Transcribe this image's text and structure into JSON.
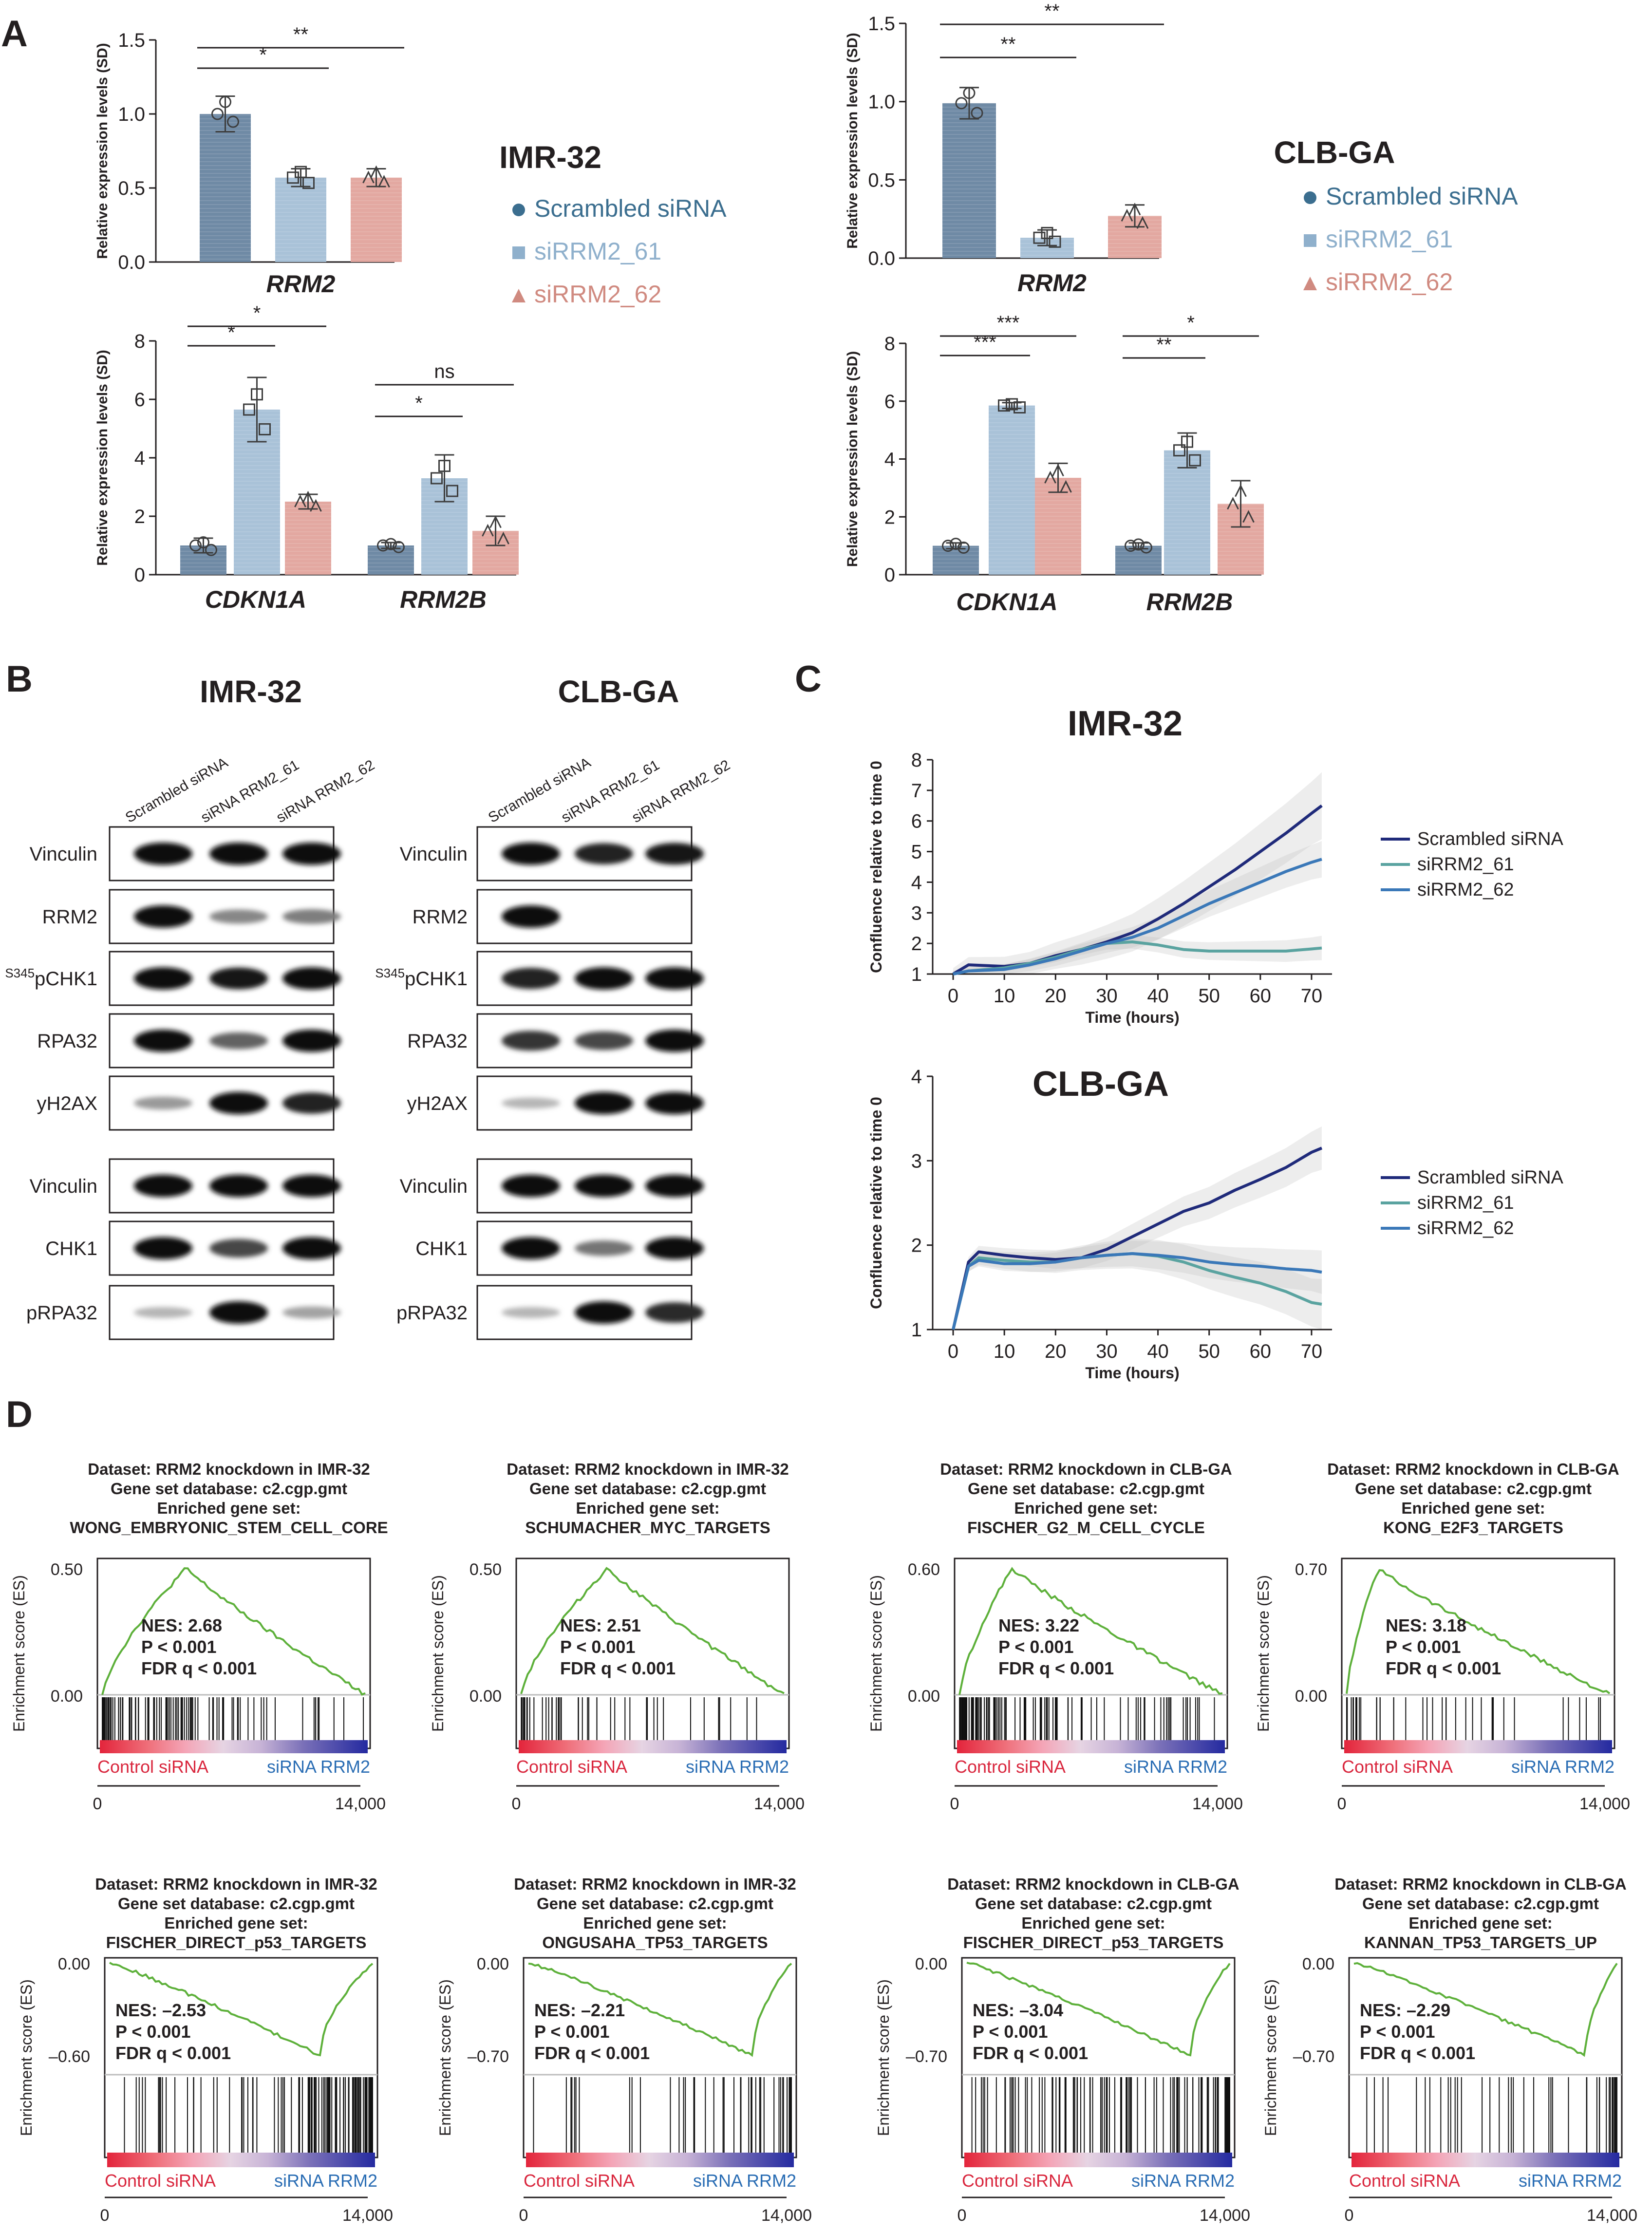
{
  "panel_letters": [
    "A",
    "B",
    "C",
    "D"
  ],
  "colors": {
    "scrambled": "#6f8aa5",
    "si61": "#a9c2d8",
    "si62": "#e3a8a1",
    "legend_scrambled": "#3b6e8f",
    "legend_si61": "#8fb0cc",
    "legend_si62": "#d08a80",
    "curve_scrambled": "#1f2a7a",
    "curve_si61": "#5aa3a0",
    "curve_si62": "#3a78b8",
    "gsea_line": "#5db03a"
  },
  "panel_a": {
    "ylabel": "Relative expression levels (SD)",
    "legend": [
      "Scrambled siRNA",
      "siRRM2_61",
      "siRRM2_62"
    ],
    "cell_lines": [
      {
        "name": "IMR-32",
        "rrm2": {
          "gene": "RRM2",
          "values": [
            1.0,
            0.57,
            0.57
          ],
          "errors": [
            0.12,
            0.06,
            0.06
          ],
          "ylim": [
            0,
            1.5
          ],
          "ticks": [
            "0.0",
            "0.5",
            "1.0",
            "1.5"
          ],
          "sig": [
            {
              "label": "**",
              "from": 0,
              "to": 2
            },
            {
              "label": "*",
              "from": 0,
              "to": 1
            }
          ]
        },
        "other": {
          "genes": [
            "CDKN1A",
            "RRM2B"
          ],
          "values": [
            [
              1.0,
              5.65,
              2.5
            ],
            [
              1.0,
              3.3,
              1.5
            ]
          ],
          "errors": [
            [
              0.25,
              1.1,
              0.25
            ],
            [
              0.1,
              0.8,
              0.5
            ]
          ],
          "ylim": [
            0,
            8
          ],
          "ticks": [
            "0",
            "2",
            "4",
            "6",
            "8"
          ],
          "sig": [
            {
              "label": "*",
              "group": 0,
              "from": 0,
              "to": 2
            },
            {
              "label": "*",
              "group": 0,
              "from": 0,
              "to": 1
            },
            {
              "label": "ns",
              "group": 1,
              "from": 0,
              "to": 2
            },
            {
              "label": "*",
              "group": 1,
              "from": 0,
              "to": 1
            }
          ]
        }
      },
      {
        "name": "CLB-GA",
        "rrm2": {
          "gene": "RRM2",
          "values": [
            0.99,
            0.13,
            0.27
          ],
          "errors": [
            0.1,
            0.05,
            0.07
          ],
          "ylim": [
            0,
            1.5
          ],
          "ticks": [
            "0.0",
            "0.5",
            "1.0",
            "1.5"
          ],
          "sig": [
            {
              "label": "**",
              "from": 0,
              "to": 2
            },
            {
              "label": "**",
              "from": 0,
              "to": 1
            }
          ]
        },
        "other": {
          "genes": [
            "CDKN1A",
            "RRM2B"
          ],
          "values": [
            [
              1.0,
              5.85,
              3.35
            ],
            [
              1.0,
              4.3,
              2.45
            ]
          ],
          "errors": [
            [
              0.1,
              0.1,
              0.5
            ],
            [
              0.1,
              0.6,
              0.8
            ]
          ],
          "ylim": [
            0,
            8
          ],
          "ticks": [
            "0",
            "2",
            "4",
            "6",
            "8"
          ],
          "sig": [
            {
              "label": "***",
              "group": 0,
              "from": 0,
              "to": 2
            },
            {
              "label": "***",
              "group": 0,
              "from": 0,
              "to": 1
            },
            {
              "label": "*",
              "group": 1,
              "from": 0,
              "to": 2
            },
            {
              "label": "**",
              "group": 1,
              "from": 0,
              "to": 1
            }
          ]
        }
      }
    ]
  },
  "panel_b": {
    "lane_labels": [
      "Scrambled siRNA",
      "siRNA RRM2_61",
      "siRNA RRM2_62"
    ],
    "blots": [
      {
        "title": "IMR-32",
        "rows": [
          {
            "label": "Vinculin",
            "intensity": [
              1.0,
              1.0,
              1.0
            ]
          },
          {
            "label": "RRM2",
            "intensity": [
              1.0,
              0.35,
              0.4
            ]
          },
          {
            "label": "pCHK1",
            "superscript": "S345",
            "intensity": [
              1.0,
              0.95,
              1.0
            ]
          },
          {
            "label": "RPA32",
            "intensity": [
              1.0,
              0.55,
              1.0
            ]
          },
          {
            "label": "yH2AX",
            "intensity": [
              0.25,
              1.0,
              0.9
            ]
          },
          {
            "label": "Vinculin",
            "intensity": [
              1.0,
              1.0,
              1.0
            ]
          },
          {
            "label": "CHK1",
            "intensity": [
              1.0,
              0.7,
              1.0
            ]
          },
          {
            "label": "pRPA32",
            "intensity": [
              0.1,
              1.0,
              0.2
            ]
          }
        ]
      },
      {
        "title": "CLB-GA",
        "rows": [
          {
            "label": "Vinculin",
            "intensity": [
              1.0,
              0.9,
              0.95
            ]
          },
          {
            "label": "RRM2",
            "intensity": [
              1.0,
              0.0,
              0.0
            ]
          },
          {
            "label": "pCHK1",
            "superscript": "S345",
            "intensity": [
              0.9,
              1.0,
              1.0
            ]
          },
          {
            "label": "RPA32",
            "intensity": [
              0.8,
              0.7,
              1.0
            ]
          },
          {
            "label": "yH2AX",
            "intensity": [
              0.1,
              1.0,
              1.0
            ]
          },
          {
            "label": "Vinculin",
            "intensity": [
              1.0,
              1.0,
              1.0
            ]
          },
          {
            "label": "CHK1",
            "intensity": [
              1.0,
              0.45,
              1.0
            ]
          },
          {
            "label": "pRPA32",
            "intensity": [
              0.1,
              1.0,
              0.85
            ]
          }
        ]
      }
    ]
  },
  "chart_data": [
    {
      "type": "line",
      "title": "IMR-32",
      "xlabel": "Time (hours)",
      "ylabel": "Confluence relative to time 0",
      "xlim": [
        -4,
        74
      ],
      "ylim": [
        1,
        8
      ],
      "xticks": [
        0,
        10,
        20,
        30,
        40,
        50,
        60,
        70
      ],
      "yticks": [
        1,
        2,
        3,
        4,
        5,
        6,
        7,
        8
      ],
      "x": [
        0,
        3,
        10,
        15,
        20,
        25,
        30,
        35,
        40,
        45,
        50,
        55,
        60,
        65,
        70,
        72
      ],
      "series": [
        {
          "name": "Scrambled siRNA",
          "values": [
            1.0,
            1.3,
            1.25,
            1.35,
            1.6,
            1.8,
            2.05,
            2.35,
            2.8,
            3.3,
            3.85,
            4.4,
            5.0,
            5.6,
            6.25,
            6.5
          ]
        },
        {
          "name": "siRRM2_61",
          "values": [
            1.0,
            1.1,
            1.2,
            1.35,
            1.55,
            1.8,
            2.0,
            2.05,
            1.95,
            1.8,
            1.75,
            1.75,
            1.75,
            1.75,
            1.82,
            1.85
          ]
        },
        {
          "name": "siRRM2_62",
          "values": [
            1.0,
            1.1,
            1.15,
            1.3,
            1.5,
            1.75,
            2.0,
            2.2,
            2.5,
            2.9,
            3.3,
            3.65,
            4.0,
            4.35,
            4.65,
            4.75
          ]
        }
      ],
      "legend": "right"
    },
    {
      "type": "line",
      "title": "CLB-GA",
      "xlabel": "Time (hours)",
      "ylabel": "Confluence relative to time 0",
      "xlim": [
        -4,
        74
      ],
      "ylim": [
        1,
        4
      ],
      "xticks": [
        0,
        10,
        20,
        30,
        40,
        50,
        60,
        70
      ],
      "yticks": [
        1,
        2,
        3,
        4
      ],
      "x": [
        0,
        3,
        5,
        10,
        15,
        20,
        25,
        30,
        35,
        40,
        45,
        50,
        55,
        60,
        65,
        70,
        72
      ],
      "series": [
        {
          "name": "Scrambled siRNA",
          "values": [
            1.0,
            1.8,
            1.92,
            1.88,
            1.85,
            1.83,
            1.85,
            1.95,
            2.1,
            2.25,
            2.4,
            2.5,
            2.65,
            2.78,
            2.92,
            3.1,
            3.15
          ]
        },
        {
          "name": "siRRM2_61",
          "values": [
            1.0,
            1.75,
            1.85,
            1.82,
            1.8,
            1.8,
            1.85,
            1.88,
            1.9,
            1.87,
            1.8,
            1.7,
            1.62,
            1.55,
            1.45,
            1.32,
            1.3
          ]
        },
        {
          "name": "siRRM2_62",
          "values": [
            1.0,
            1.75,
            1.82,
            1.78,
            1.78,
            1.8,
            1.85,
            1.88,
            1.9,
            1.88,
            1.85,
            1.8,
            1.77,
            1.75,
            1.72,
            1.7,
            1.68
          ]
        }
      ],
      "legend": "right"
    }
  ],
  "panel_d": {
    "ylabel": "Enrichment score (ES)",
    "label_left": "Control siRNA",
    "label_right": "siRNA RRM2",
    "axis_start": "0",
    "axis_end": "14,000",
    "plots": [
      {
        "dataset": "Dataset: RRM2 knockdown in IMR-32",
        "database": "Gene set database: c2.cgp.gmt",
        "enriched": "Enriched gene set:",
        "gene_set": "WONG_EMBRYONIC_STEM_CELL_CORE",
        "top": "0.50",
        "bottom": "0.00",
        "nes": "NES: 2.68",
        "p": "P < 0.001",
        "fdr": "FDR q < 0.001",
        "direction": "up",
        "peak_frac": 0.32,
        "hit_density": "left"
      },
      {
        "dataset": "Dataset: RRM2 knockdown in IMR-32",
        "database": "Gene set database: c2.cgp.gmt",
        "enriched": "Enriched gene set:",
        "gene_set": "SCHUMACHER_MYC_TARGETS",
        "top": "0.50",
        "bottom": "0.00",
        "nes": "NES: 2.51",
        "p": "P < 0.001",
        "fdr": "FDR q < 0.001",
        "direction": "up",
        "peak_frac": 0.33,
        "hit_density": "left-sparse"
      },
      {
        "dataset": "Dataset: RRM2 knockdown in CLB-GA",
        "database": "Gene set database: c2.cgp.gmt",
        "enriched": "Enriched gene set:",
        "gene_set": "FISCHER_G2_M_CELL_CYCLE",
        "top": "0.60",
        "bottom": "0.00",
        "nes": "NES: 3.22",
        "p": "P < 0.001",
        "fdr": "FDR q < 0.001",
        "direction": "up",
        "peak_frac": 0.2,
        "hit_density": "left"
      },
      {
        "dataset": "Dataset: RRM2 knockdown in CLB-GA",
        "database": "Gene set database: c2.cgp.gmt",
        "enriched": "Enriched gene set:",
        "gene_set": "KONG_E2F3_TARGETS",
        "top": "0.70",
        "bottom": "0.00",
        "nes": "NES: 3.18",
        "p": "P < 0.001",
        "fdr": "FDR q < 0.001",
        "direction": "up",
        "peak_frac": 0.12,
        "hit_density": "left-sparse"
      },
      {
        "dataset": "Dataset: RRM2 knockdown in IMR-32",
        "database": "Gene set database: c2.cgp.gmt",
        "enriched": "Enriched gene set:",
        "gene_set": "FISCHER_DIRECT_p53_TARGETS",
        "top": "0.00",
        "bottom": "–0.60",
        "nes": "NES: –2.53",
        "p": "P < 0.001",
        "fdr": "FDR q < 0.001",
        "direction": "down",
        "peak_frac": 0.8,
        "hit_density": "right"
      },
      {
        "dataset": "Dataset: RRM2 knockdown in IMR-32",
        "database": "Gene set database: c2.cgp.gmt",
        "enriched": "Enriched gene set:",
        "gene_set": "ONGUSAHA_TP53_TARGETS",
        "top": "0.00",
        "bottom": "–0.70",
        "nes": "NES: –2.21",
        "p": "P < 0.001",
        "fdr": "FDR q < 0.001",
        "direction": "down",
        "peak_frac": 0.85,
        "hit_density": "right-sparse"
      },
      {
        "dataset": "Dataset: RRM2 knockdown in CLB-GA",
        "database": "Gene set database: c2.cgp.gmt",
        "enriched": "Enriched gene set:",
        "gene_set": "FISCHER_DIRECT_p53_TARGETS",
        "top": "0.00",
        "bottom": "–0.70",
        "nes": "NES: –3.04",
        "p": "P < 0.001",
        "fdr": "FDR q < 0.001",
        "direction": "down",
        "peak_frac": 0.85,
        "hit_density": "right"
      },
      {
        "dataset": "Dataset: RRM2 knockdown in CLB-GA",
        "database": "Gene set database: c2.cgp.gmt",
        "enriched": "Enriched gene set:",
        "gene_set": "KANNAN_TP53_TARGETS_UP",
        "top": "0.00",
        "bottom": "–0.70",
        "nes": "NES: –2.29",
        "p": "P < 0.001",
        "fdr": "FDR q < 0.001",
        "direction": "down",
        "peak_frac": 0.88,
        "hit_density": "right-sparse"
      }
    ]
  }
}
